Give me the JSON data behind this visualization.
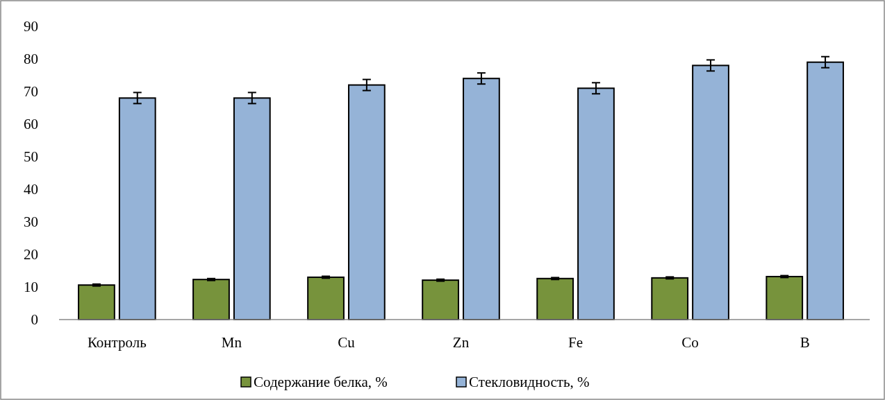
{
  "chart_data": {
    "type": "bar",
    "categories": [
      "Контроль",
      "Mn",
      "Cu",
      "Zn",
      "Fe",
      "Co",
      "B"
    ],
    "series": [
      {
        "name": "Содержание белка, %",
        "color": "#77933c",
        "values": [
          10.6,
          12.3,
          13.0,
          12.1,
          12.6,
          12.8,
          13.2
        ],
        "errors": [
          0.3,
          0.3,
          0.3,
          0.3,
          0.3,
          0.3,
          0.3
        ]
      },
      {
        "name": "Стекловидность, %",
        "color": "#95b3d7",
        "values": [
          68,
          68,
          72,
          74,
          71,
          78,
          79
        ],
        "errors": [
          1.7,
          1.7,
          1.7,
          1.7,
          1.7,
          1.7,
          1.7
        ]
      }
    ],
    "ylim": [
      0,
      90
    ],
    "yticks": [
      0,
      10,
      20,
      30,
      40,
      50,
      60,
      70,
      80,
      90
    ],
    "grid": false,
    "legend": "bottom"
  }
}
